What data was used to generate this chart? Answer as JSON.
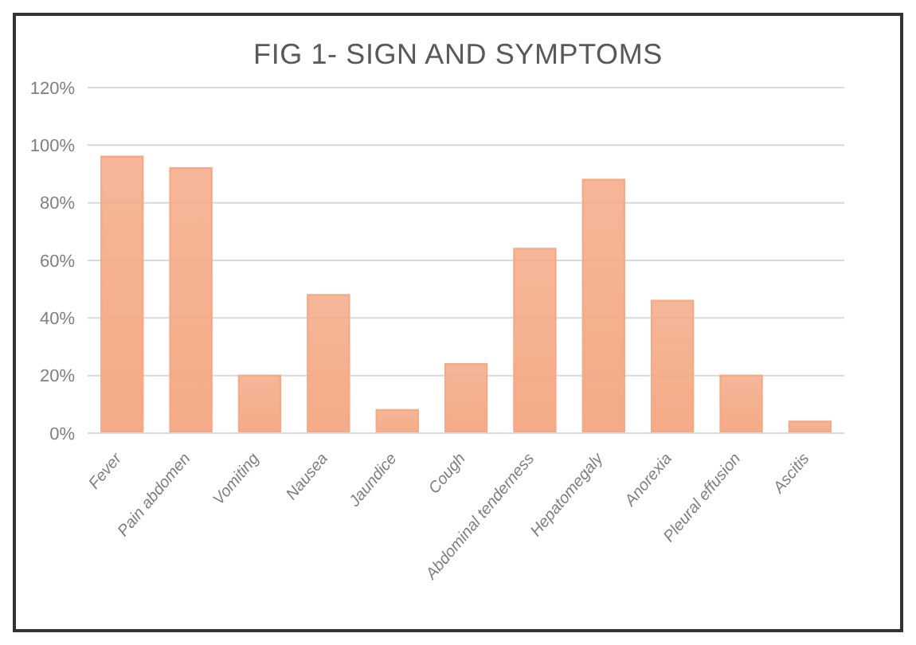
{
  "chart_data": {
    "type": "bar",
    "title": "FIG 1- SIGN AND SYMPTOMS",
    "categories": [
      "Fever",
      "Pain abdomen",
      "Vomiting",
      "Nausea",
      "Jaundice",
      "Cough",
      "Abdominal tenderness",
      "Hepatomegaly",
      "Anorexia",
      "Pleural effusion",
      "Ascitis"
    ],
    "values": [
      96,
      92,
      20,
      48,
      8,
      24,
      64,
      88,
      46,
      20,
      4
    ],
    "color": "#f4aa86",
    "ylim": [
      0,
      120
    ],
    "yticks": [
      {
        "value": 0,
        "label": "0%"
      },
      {
        "value": 20,
        "label": "20%"
      },
      {
        "value": 40,
        "label": "40%"
      },
      {
        "value": 60,
        "label": "60%"
      },
      {
        "value": 80,
        "label": "80%"
      },
      {
        "value": 100,
        "label": "100%"
      },
      {
        "value": 120,
        "label": "120%"
      }
    ],
    "grid": "y",
    "legend": false
  }
}
